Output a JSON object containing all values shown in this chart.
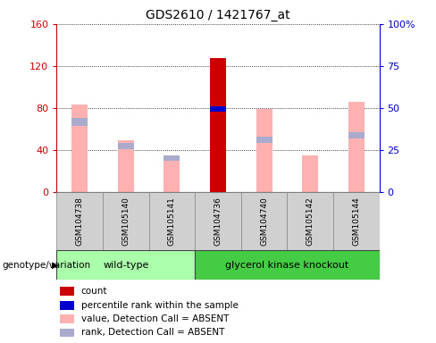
{
  "title": "GDS2610 / 1421767_at",
  "samples": [
    "GSM104738",
    "GSM105140",
    "GSM105141",
    "GSM104736",
    "GSM104740",
    "GSM105142",
    "GSM105144"
  ],
  "groups": [
    "wild-type",
    "wild-type",
    "wild-type",
    "glycerol kinase knockout",
    "glycerol kinase knockout",
    "glycerol kinase knockout",
    "glycerol kinase knockout"
  ],
  "group_colors": {
    "wild-type": "#aaffaa",
    "glycerol kinase knockout": "#44cc44"
  },
  "value_pink": [
    83,
    49,
    30,
    0,
    79,
    35,
    86
  ],
  "rank_blue_light_height": [
    8,
    6,
    5,
    0,
    6,
    0,
    6
  ],
  "rank_blue_light_bottom": [
    63,
    41,
    30,
    0,
    47,
    0,
    51
  ],
  "count_red": [
    0,
    0,
    0,
    128,
    0,
    0,
    0
  ],
  "percentile_blue_pct": [
    0,
    0,
    0,
    49.4,
    0,
    0,
    0
  ],
  "percentile_blue_height_pct": [
    0,
    0,
    0,
    3,
    0,
    0,
    0
  ],
  "ylim_left": [
    0,
    160
  ],
  "ylim_right": [
    0,
    100
  ],
  "yticks_left": [
    0,
    40,
    80,
    120,
    160
  ],
  "yticks_right": [
    0,
    25,
    50,
    75,
    100
  ],
  "yticklabels_right": [
    "0",
    "25",
    "50",
    "75",
    "100%"
  ],
  "bar_width": 0.35,
  "color_pink": "#ffb0b0",
  "color_blue_light": "#aaaacc",
  "color_red": "#cc0000",
  "color_blue": "#0000cc",
  "color_left_axis": "#cc0000",
  "color_right_axis": "#0000cc",
  "plot_bg": "#ffffff",
  "group_label": "genotype/variation",
  "legend_items": [
    {
      "label": "count",
      "color": "#cc0000"
    },
    {
      "label": "percentile rank within the sample",
      "color": "#0000cc"
    },
    {
      "label": "value, Detection Call = ABSENT",
      "color": "#ffb0b0"
    },
    {
      "label": "rank, Detection Call = ABSENT",
      "color": "#aaaacc"
    }
  ]
}
